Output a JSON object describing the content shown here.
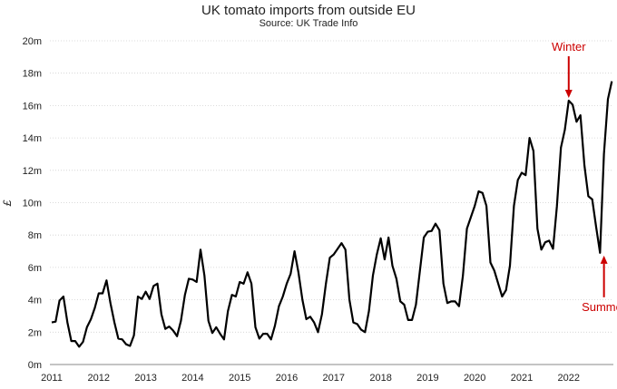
{
  "chart_data": {
    "type": "line",
    "title": "UK tomato imports from outside EU",
    "subtitle": "Source: UK Trade Info",
    "ylabel": "£",
    "xlabel": "",
    "ylim": [
      0,
      20
    ],
    "y_ticks": [
      {
        "value": 0,
        "label": "0m"
      },
      {
        "value": 2,
        "label": "2m"
      },
      {
        "value": 4,
        "label": "4m"
      },
      {
        "value": 6,
        "label": "6m"
      },
      {
        "value": 8,
        "label": "8m"
      },
      {
        "value": 10,
        "label": "10m"
      },
      {
        "value": 12,
        "label": "12m"
      },
      {
        "value": 14,
        "label": "14m"
      },
      {
        "value": 16,
        "label": "16m"
      },
      {
        "value": 18,
        "label": "18m"
      },
      {
        "value": 20,
        "label": "20m"
      }
    ],
    "x_ticks": [
      "2011",
      "2012",
      "2013",
      "2014",
      "2015",
      "2016",
      "2017",
      "2018",
      "2019",
      "2020",
      "2021",
      "2022"
    ],
    "grid": true,
    "series": [
      {
        "color": "#000000",
        "start": "2011-01",
        "values": [
          2.6,
          2.65,
          3.95,
          4.2,
          2.6,
          1.45,
          1.45,
          1.1,
          1.4,
          2.3,
          2.8,
          3.5,
          4.4,
          4.4,
          5.2,
          3.8,
          2.6,
          1.6,
          1.55,
          1.25,
          1.15,
          1.8,
          4.2,
          4.05,
          4.5,
          4.05,
          4.85,
          5.0,
          3.1,
          2.2,
          2.35,
          2.1,
          1.75,
          2.7,
          4.3,
          5.3,
          5.25,
          5.1,
          7.1,
          5.5,
          2.7,
          1.95,
          2.3,
          1.9,
          1.55,
          3.3,
          4.3,
          4.2,
          5.1,
          5.0,
          5.7,
          5.0,
          2.3,
          1.6,
          1.9,
          1.9,
          1.55,
          2.4,
          3.6,
          4.2,
          5.0,
          5.6,
          7.0,
          5.7,
          4.0,
          2.8,
          2.95,
          2.6,
          2.0,
          3.1,
          5.0,
          6.6,
          6.8,
          7.15,
          7.5,
          7.1,
          4.0,
          2.6,
          2.5,
          2.15,
          2.0,
          3.3,
          5.5,
          6.8,
          7.8,
          6.5,
          7.85,
          6.1,
          5.3,
          3.9,
          3.7,
          2.75,
          2.75,
          3.7,
          5.8,
          7.85,
          8.2,
          8.25,
          8.7,
          8.3,
          5.0,
          3.8,
          3.9,
          3.9,
          3.6,
          5.5,
          8.4,
          9.1,
          9.8,
          10.7,
          10.6,
          9.8,
          6.3,
          5.8,
          5.0,
          4.2,
          4.6,
          6.1,
          9.8,
          11.4,
          11.85,
          11.7,
          14.0,
          13.2,
          8.4,
          7.1,
          7.55,
          7.65,
          7.15,
          9.8,
          13.4,
          14.5,
          16.3,
          16.05,
          15.0,
          15.4,
          12.3,
          10.4,
          10.2,
          8.5,
          6.9,
          13.0,
          16.4,
          17.5
        ]
      }
    ],
    "annotations": [
      {
        "text": "Winter",
        "x": "2022-01",
        "value": 16.3,
        "direction": "down"
      },
      {
        "text": "Summer",
        "x": "2022-10",
        "value": 6.9,
        "direction": "up"
      }
    ],
    "annotation_color": "#cc0000"
  }
}
